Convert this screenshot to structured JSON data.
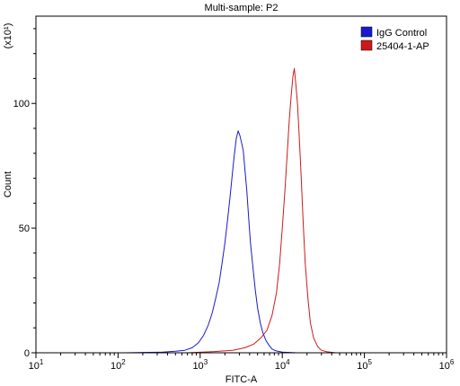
{
  "chart_data": {
    "type": "line",
    "title": "Multi-sample: P2",
    "xlabel": "FITC-A",
    "ylabel": "Count",
    "y_multiplier_label": "(x10¹)",
    "x_scale": "log",
    "xlim": [
      10,
      1000000
    ],
    "ylim": [
      0,
      135
    ],
    "x_ticks": [
      {
        "value": 10,
        "base": "10",
        "exp": "1"
      },
      {
        "value": 100,
        "base": "10",
        "exp": "2"
      },
      {
        "value": 1000,
        "base": "10",
        "exp": "3"
      },
      {
        "value": 10000,
        "base": "10",
        "exp": "4"
      },
      {
        "value": 100000,
        "base": "10",
        "exp": "5"
      },
      {
        "value": 1000000,
        "base": "10",
        "exp": "6"
      }
    ],
    "y_ticks": [
      0,
      50,
      100
    ],
    "grid": false,
    "legend_position": "top-right",
    "series": [
      {
        "name": "IgG Control",
        "color": "#1a1acc",
        "points": [
          [
            120,
            0
          ],
          [
            350,
            0.3
          ],
          [
            500,
            0.6
          ],
          [
            650,
            1.0
          ],
          [
            800,
            2.0
          ],
          [
            950,
            4.0
          ],
          [
            1100,
            7.0
          ],
          [
            1250,
            11
          ],
          [
            1400,
            16
          ],
          [
            1550,
            22
          ],
          [
            1700,
            28
          ],
          [
            1850,
            36
          ],
          [
            2000,
            44
          ],
          [
            2150,
            53
          ],
          [
            2300,
            62
          ],
          [
            2450,
            71
          ],
          [
            2600,
            79
          ],
          [
            2750,
            86
          ],
          [
            2900,
            89
          ],
          [
            3050,
            87
          ],
          [
            3200,
            84
          ],
          [
            3350,
            81
          ],
          [
            3500,
            74
          ],
          [
            3700,
            65
          ],
          [
            3900,
            54
          ],
          [
            4100,
            44
          ],
          [
            4400,
            34
          ],
          [
            4700,
            25
          ],
          [
            5000,
            18
          ],
          [
            5400,
            12
          ],
          [
            5800,
            8
          ],
          [
            6300,
            5
          ],
          [
            6900,
            3
          ],
          [
            7500,
            1.5
          ],
          [
            8300,
            0.8
          ],
          [
            10000,
            0.3
          ],
          [
            15000,
            0
          ]
        ]
      },
      {
        "name": "25404-1-AP",
        "color": "#cc1a1a",
        "points": [
          [
            700,
            0
          ],
          [
            1500,
            0.5
          ],
          [
            2500,
            1.0
          ],
          [
            3500,
            2.0
          ],
          [
            4500,
            3.5
          ],
          [
            5500,
            6
          ],
          [
            6500,
            9
          ],
          [
            7500,
            15
          ],
          [
            8500,
            24
          ],
          [
            9300,
            36
          ],
          [
            10000,
            50
          ],
          [
            10800,
            66
          ],
          [
            11500,
            80
          ],
          [
            12200,
            94
          ],
          [
            12900,
            104
          ],
          [
            13500,
            111
          ],
          [
            14000,
            114
          ],
          [
            14600,
            108
          ],
          [
            15300,
            100
          ],
          [
            16000,
            88
          ],
          [
            17000,
            70
          ],
          [
            18000,
            52
          ],
          [
            19000,
            36
          ],
          [
            20500,
            22
          ],
          [
            22000,
            12
          ],
          [
            24000,
            6
          ],
          [
            27000,
            2.5
          ],
          [
            30000,
            1
          ],
          [
            35000,
            0.4
          ],
          [
            45000,
            0
          ]
        ]
      }
    ]
  }
}
